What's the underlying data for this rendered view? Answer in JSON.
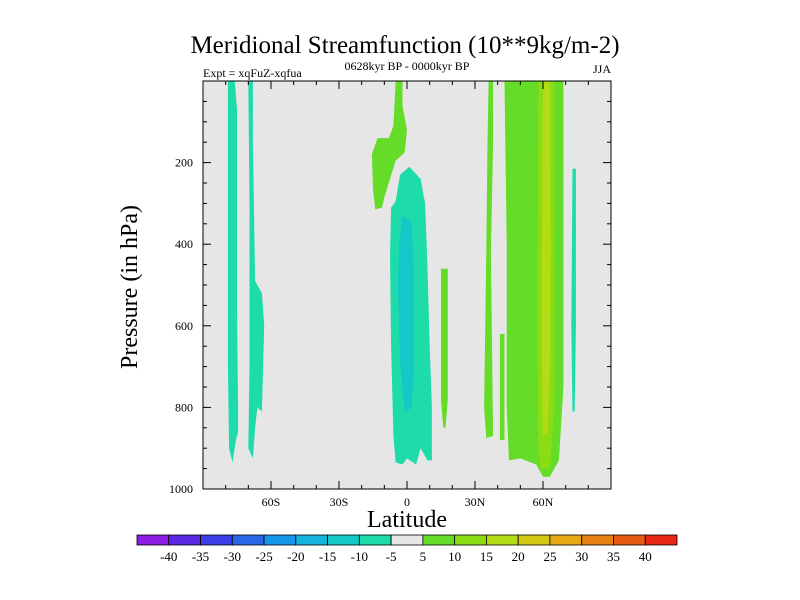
{
  "chart_data": {
    "type": "contour",
    "title": "Meridional Streamfunction (10**9kg/m-2)",
    "subtitle_left": "Expt = xqFuZ-xqfua",
    "subtitle_center": "0628kyr BP - 0000kyr BP",
    "subtitle_right": "JJA",
    "xlabel": "Latitude",
    "ylabel": "Pressure (in hPa)",
    "xlim": [
      -90,
      90
    ],
    "ylim": [
      1000,
      0
    ],
    "x_ticks": [
      {
        "value": -60,
        "label": "60S"
      },
      {
        "value": -30,
        "label": "30S"
      },
      {
        "value": 0,
        "label": "0"
      },
      {
        "value": 30,
        "label": "30N"
      },
      {
        "value": 60,
        "label": "60N"
      }
    ],
    "y_ticks": [
      {
        "value": 200,
        "label": "200"
      },
      {
        "value": 400,
        "label": "400"
      },
      {
        "value": 600,
        "label": "600"
      },
      {
        "value": 800,
        "label": "800"
      },
      {
        "value": 1000,
        "label": "1000"
      }
    ],
    "background_color": "#e6e6e6",
    "colorbar": {
      "levels": [
        "-40",
        "-35",
        "-30",
        "-25",
        "-20",
        "-15",
        "-10",
        "-5",
        "5",
        "10",
        "15",
        "20",
        "25",
        "30",
        "35",
        "40"
      ],
      "colors": [
        "#8c1ee6",
        "#5a28e0",
        "#3a3ee8",
        "#2868e8",
        "#1496e8",
        "#14b4dc",
        "#14c8c8",
        "#1edcaa",
        "#e6e6e6",
        "#64dc28",
        "#8cdc14",
        "#b4dc14",
        "#d2c814",
        "#e6aa14",
        "#e68214",
        "#e65a14",
        "#e62814"
      ]
    },
    "regions": [
      {
        "name": "sh-polar-negative-band",
        "value_range": [
          -10,
          -5
        ],
        "points": [
          [
            -79,
            0
          ],
          [
            -76,
            0
          ],
          [
            -75,
            70
          ],
          [
            -75,
            300
          ],
          [
            -75,
            560
          ],
          [
            -74.5,
            800
          ],
          [
            -74.5,
            860
          ],
          [
            -75.5,
            880
          ],
          [
            -77,
            935
          ],
          [
            -78.5,
            900
          ],
          [
            -79,
            700
          ],
          [
            -79,
            300
          ]
        ]
      },
      {
        "name": "sh-negative-band-2",
        "value_range": [
          -10,
          -5
        ],
        "points": [
          [
            -70,
            0
          ],
          [
            -68,
            0
          ],
          [
            -68,
            150
          ],
          [
            -67,
            490
          ],
          [
            -64,
            520
          ],
          [
            -63,
            600
          ],
          [
            -64,
            810
          ],
          [
            -66,
            800
          ],
          [
            -67,
            850
          ],
          [
            -68,
            925
          ],
          [
            -70,
            900
          ],
          [
            -69.5,
            700
          ],
          [
            -69.5,
            300
          ]
        ]
      },
      {
        "name": "tropical-negative-cell",
        "value_range": [
          -10,
          -5
        ],
        "points": [
          [
            -3,
            230
          ],
          [
            1,
            210
          ],
          [
            6,
            240
          ],
          [
            8,
            300
          ],
          [
            9,
            450
          ],
          [
            10,
            650
          ],
          [
            11,
            800
          ],
          [
            11,
            930
          ],
          [
            9,
            930
          ],
          [
            6,
            900
          ],
          [
            4,
            940
          ],
          [
            0,
            925
          ],
          [
            -2,
            940
          ],
          [
            -5,
            935
          ],
          [
            -6,
            870
          ],
          [
            -7,
            650
          ],
          [
            -7.5,
            430
          ],
          [
            -7,
            310
          ],
          [
            -5,
            295
          ],
          [
            -4,
            260
          ]
        ]
      },
      {
        "name": "tropical-core",
        "value_range": [
          -15,
          -10
        ],
        "points": [
          [
            -2,
            330
          ],
          [
            2,
            345
          ],
          [
            3,
            460
          ],
          [
            3,
            720
          ],
          [
            2,
            800
          ],
          [
            -1,
            815
          ],
          [
            -3,
            690
          ],
          [
            -4,
            510
          ],
          [
            -3.5,
            400
          ]
        ]
      },
      {
        "name": "sh-positive-lobe",
        "value_range": [
          5,
          10
        ],
        "points": [
          [
            -5,
            0
          ],
          [
            -2,
            0
          ],
          [
            -2,
            60
          ],
          [
            0,
            120
          ],
          [
            -1,
            175
          ],
          [
            -5,
            195
          ],
          [
            -10,
            285
          ],
          [
            -11,
            310
          ],
          [
            -14,
            315
          ],
          [
            -15,
            265
          ],
          [
            -15.5,
            180
          ],
          [
            -13,
            140
          ],
          [
            -8,
            140
          ],
          [
            -6,
            110
          ]
        ]
      },
      {
        "name": "nh-subtropical-strip",
        "value_range": [
          5,
          10
        ],
        "points": [
          [
            15,
            460
          ],
          [
            18,
            460
          ],
          [
            18,
            780
          ],
          [
            17,
            850
          ],
          [
            16,
            850
          ],
          [
            15,
            780
          ]
        ]
      },
      {
        "name": "nh-narrow-positive-1",
        "value_range": [
          5,
          10
        ],
        "points": [
          [
            36,
            0
          ],
          [
            38,
            0
          ],
          [
            38,
            150
          ],
          [
            37,
            420
          ],
          [
            38,
            870
          ],
          [
            35,
            875
          ],
          [
            34,
            800
          ],
          [
            35,
            420
          ],
          [
            35.5,
            150
          ]
        ]
      },
      {
        "name": "nh-narrow-positive-2",
        "value_range": [
          5,
          10
        ],
        "points": [
          [
            41,
            620
          ],
          [
            43,
            620
          ],
          [
            43,
            880
          ],
          [
            41,
            880
          ]
        ]
      },
      {
        "name": "nh-main-positive-cell",
        "value_range": [
          5,
          10
        ],
        "points": [
          [
            43,
            0
          ],
          [
            69,
            0
          ],
          [
            69,
            500
          ],
          [
            69,
            750
          ],
          [
            67,
            930
          ],
          [
            63,
            970
          ],
          [
            60,
            970
          ],
          [
            57,
            940
          ],
          [
            50,
            925
          ],
          [
            45,
            930
          ],
          [
            44,
            800
          ],
          [
            44,
            400
          ]
        ]
      },
      {
        "name": "nh-positive-10-15",
        "value_range": [
          10,
          15
        ],
        "points": [
          [
            58,
            0
          ],
          [
            65,
            0
          ],
          [
            65,
            800
          ],
          [
            63,
            950
          ],
          [
            59,
            950
          ],
          [
            58,
            900
          ],
          [
            57.5,
            600
          ]
        ]
      },
      {
        "name": "nh-positive-core",
        "value_range": [
          15,
          20
        ],
        "points": [
          [
            60,
            0
          ],
          [
            63,
            0
          ],
          [
            63,
            200
          ],
          [
            63.5,
            400
          ],
          [
            63,
            700
          ],
          [
            62,
            860
          ],
          [
            60,
            870
          ],
          [
            59.5,
            700
          ],
          [
            59.5,
            400
          ]
        ]
      },
      {
        "name": "nh-polar-negative-sliver",
        "value_range": [
          -10,
          -5
        ],
        "points": [
          [
            73,
            215
          ],
          [
            74.5,
            215
          ],
          [
            74.5,
            600
          ],
          [
            74,
            810
          ],
          [
            73,
            810
          ],
          [
            72.5,
            600
          ]
        ]
      }
    ]
  }
}
